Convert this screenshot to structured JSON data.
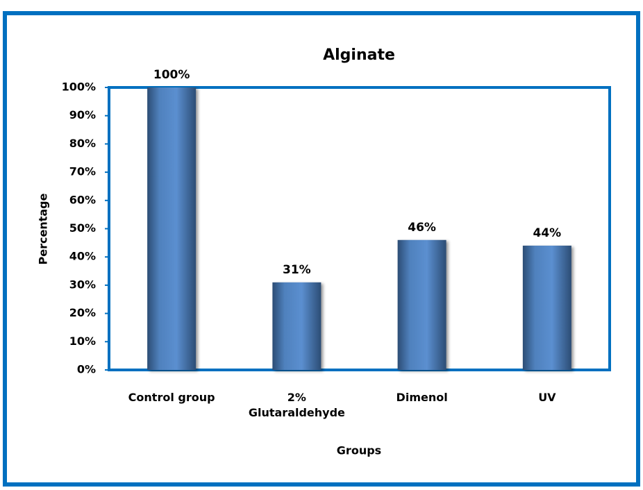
{
  "chart_data": {
    "type": "bar",
    "title": "Alginate",
    "x_label": "Groups",
    "y_label": "Percentage",
    "categories": [
      "Control group",
      "2% Glutaraldehyde",
      "Dimenol",
      "UV"
    ],
    "values": [
      100,
      31,
      46,
      44
    ],
    "value_labels": [
      "100%",
      "31%",
      "46%",
      "44%"
    ],
    "color": "#4f81bd",
    "ylim": [
      0,
      100
    ],
    "yticks": [
      {
        "value": 0,
        "label": "0%"
      },
      {
        "value": 10,
        "label": "10%"
      },
      {
        "value": 20,
        "label": "20%"
      },
      {
        "value": 30,
        "label": "30%"
      },
      {
        "value": 40,
        "label": "40%"
      },
      {
        "value": 50,
        "label": "50%"
      },
      {
        "value": 60,
        "label": "60%"
      },
      {
        "value": 70,
        "label": "70%"
      },
      {
        "value": 80,
        "label": "80%"
      },
      {
        "value": 90,
        "label": "90%"
      },
      {
        "value": 100,
        "label": "100%"
      }
    ],
    "grid": false
  }
}
